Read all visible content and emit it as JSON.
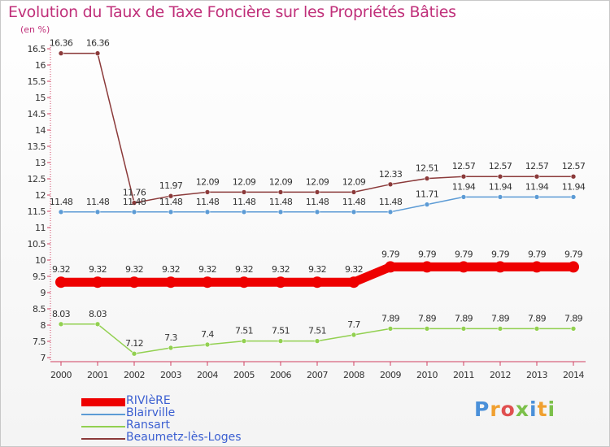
{
  "chart_data": {
    "type": "line",
    "title": "Evolution du Taux de Taxe Foncière sur les Propriétés Bâties",
    "unit_label": "(en %)",
    "xlabel": "",
    "ylabel": "(en %)",
    "x": [
      "2000",
      "2001",
      "2002",
      "2003",
      "2004",
      "2005",
      "2006",
      "2007",
      "2008",
      "2009",
      "2010",
      "2011",
      "2012",
      "2013",
      "2014"
    ],
    "ylim": [
      7,
      16.5
    ],
    "yticks": [
      7,
      7.5,
      8,
      8.5,
      9,
      9.5,
      10,
      10.5,
      11,
      11.5,
      12,
      12.5,
      13,
      13.5,
      14,
      14.5,
      15,
      15.5,
      16,
      16.5
    ],
    "ytick_labels": [
      "7",
      "7.5",
      "8",
      "8.5",
      "9",
      "9.5",
      "10",
      "10.5",
      "11",
      "11.5",
      "12",
      "12.5",
      "13",
      "13.5",
      "14",
      "14.5",
      "15",
      "15.5",
      "16",
      "16.5"
    ],
    "series": [
      {
        "name": "RIVIèRE",
        "color": "#ee0000",
        "values": [
          9.32,
          9.32,
          9.32,
          9.32,
          9.32,
          9.32,
          9.32,
          9.32,
          9.32,
          9.79,
          9.79,
          9.79,
          9.79,
          9.79,
          9.79
        ],
        "labels": [
          "9.32",
          "9.32",
          "9.32",
          "9.32",
          "9.32",
          "9.32",
          "9.32",
          "9.32",
          "9.32",
          "9.79",
          "9.79",
          "9.79",
          "9.79",
          "9.79",
          "9.79"
        ]
      },
      {
        "name": "Blairville",
        "color": "#5c9bd5",
        "values": [
          11.48,
          11.48,
          11.48,
          11.48,
          11.48,
          11.48,
          11.48,
          11.48,
          11.48,
          11.48,
          11.71,
          11.94,
          11.94,
          11.94,
          11.94
        ],
        "labels": [
          "11.48",
          "11.48",
          "11.48",
          "11.48",
          "11.48",
          "11.48",
          "11.48",
          "11.48",
          "11.48",
          "11.48",
          "11.71",
          "11.94",
          "11.94",
          "11.94",
          "11.94"
        ]
      },
      {
        "name": "Ransart",
        "color": "#92d050",
        "values": [
          8.03,
          8.03,
          7.12,
          7.3,
          7.4,
          7.51,
          7.51,
          7.51,
          7.7,
          7.89,
          7.89,
          7.89,
          7.89,
          7.89,
          7.89
        ],
        "labels": [
          "8.03",
          "8.03",
          "7.12",
          "7.3",
          "7.4",
          "7.51",
          "7.51",
          "7.51",
          "7.7",
          "7.89",
          "7.89",
          "7.89",
          "7.89",
          "7.89",
          "7.89"
        ]
      },
      {
        "name": "Beaumetz-lès-Loges",
        "color": "#8b3a3a",
        "values": [
          16.36,
          16.36,
          11.76,
          11.97,
          12.09,
          12.09,
          12.09,
          12.09,
          12.09,
          12.33,
          12.51,
          12.57,
          12.57,
          12.57,
          12.57
        ],
        "labels": [
          "16.36",
          "16.36",
          "11.76",
          "11.97",
          "12.09",
          "12.09",
          "12.09",
          "12.09",
          "12.09",
          "12.33",
          "12.51",
          "12.57",
          "12.57",
          "12.57",
          "12.57"
        ]
      }
    ],
    "legend_position": "bottom-left",
    "grid": false
  },
  "logo": {
    "text": "Proxiti",
    "colors": [
      "#4a90d9",
      "#f0a030",
      "#e05050",
      "#7cc04a",
      "#4a90d9",
      "#f0a030",
      "#7cc04a"
    ]
  }
}
